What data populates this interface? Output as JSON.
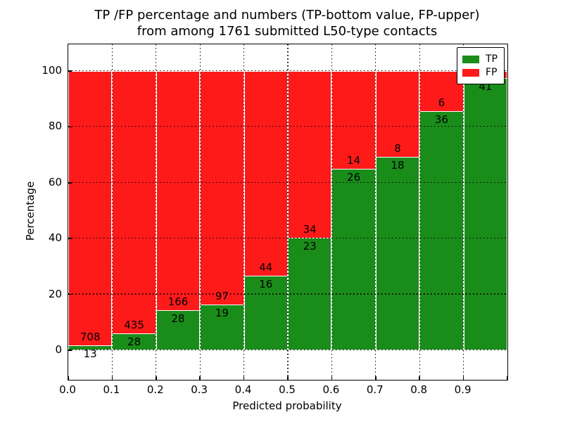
{
  "figure": {
    "title_line1": "TP /FP percentage and numbers (TP-bottom value, FP-upper)",
    "title_line2": "from among 1761 submitted L50-type contacts",
    "xlabel": "Predicted probability",
    "ylabel": "Percentage"
  },
  "legend": {
    "items": [
      {
        "label": "TP",
        "color": "#1a8c1a"
      },
      {
        "label": "FP",
        "color": "#ff1a1a"
      }
    ]
  },
  "colors": {
    "tp": "#1a8c1a",
    "fp": "#ff1a1a",
    "bar_edge": "#ffffff",
    "grid": "#000000",
    "frame": "#000000",
    "background": "#ffffff"
  },
  "chart_data": {
    "type": "bar",
    "stacked": true,
    "normalized_to_percent": 100,
    "title": "TP /FP percentage and numbers (TP-bottom value, FP-upper) from among 1761 submitted L50-type contacts",
    "total_contacts": 1761,
    "xlabel": "Predicted probability",
    "ylabel": "Percentage",
    "xlim": [
      0.0,
      1.0
    ],
    "ylim": [
      -10,
      110
    ],
    "grid": true,
    "grid_style": "dotted",
    "legend_position": "upper right",
    "x_tick_labels": [
      "0.0",
      "0.1",
      "0.2",
      "0.3",
      "0.4",
      "0.5",
      "0.6",
      "0.7",
      "0.8",
      "0.9"
    ],
    "y_tick_labels": [
      "0",
      "20",
      "40",
      "60",
      "80",
      "100"
    ],
    "y_tick_values": [
      0,
      20,
      40,
      60,
      80,
      100
    ],
    "series": [
      {
        "name": "TP",
        "color": "#1a8c1a",
        "position": "bottom"
      },
      {
        "name": "FP",
        "color": "#ff1a1a",
        "position": "top"
      }
    ],
    "bins": [
      {
        "range": [
          0.0,
          0.1
        ],
        "tp_label": "13",
        "fp_label": "708",
        "tp_pct": 1.8
      },
      {
        "range": [
          0.1,
          0.2
        ],
        "tp_label": "28",
        "fp_label": "435",
        "tp_pct": 6.0
      },
      {
        "range": [
          0.2,
          0.3
        ],
        "tp_label": "28",
        "fp_label": "166",
        "tp_pct": 14.4
      },
      {
        "range": [
          0.3,
          0.4
        ],
        "tp_label": "19",
        "fp_label": "97",
        "tp_pct": 16.4
      },
      {
        "range": [
          0.4,
          0.5
        ],
        "tp_label": "16",
        "fp_label": "44",
        "tp_pct": 26.7
      },
      {
        "range": [
          0.5,
          0.6
        ],
        "tp_label": "23",
        "fp_label": "34",
        "tp_pct": 40.4
      },
      {
        "range": [
          0.6,
          0.7
        ],
        "tp_label": "26",
        "fp_label": "14",
        "tp_pct": 65.0
      },
      {
        "range": [
          0.7,
          0.8
        ],
        "tp_label": "18",
        "fp_label": "8",
        "tp_pct": 69.2
      },
      {
        "range": [
          0.8,
          0.9
        ],
        "tp_label": "36",
        "fp_label": "6",
        "tp_pct": 85.7
      },
      {
        "range": [
          0.9,
          1.0
        ],
        "tp_label": "41",
        "fp_label": "",
        "tp_pct": 97.6
      }
    ]
  }
}
